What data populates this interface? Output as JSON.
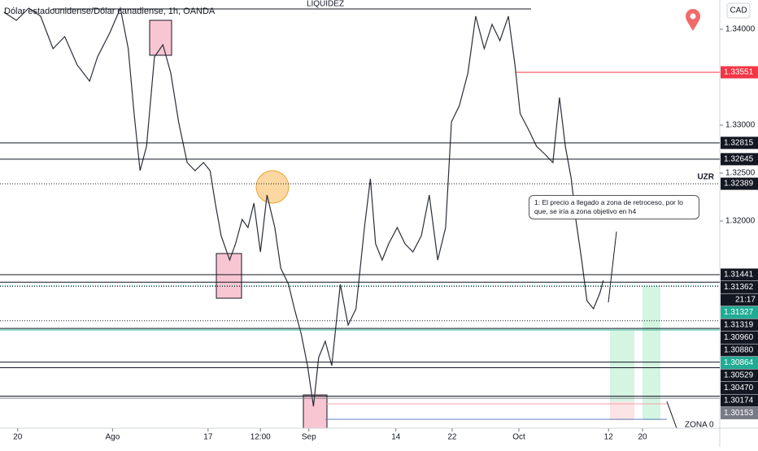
{
  "chart_data": {
    "type": "line",
    "title": "Dólar estadounidense/Dólar canadiense, 1h, OANDA",
    "currency": "CAD",
    "countdown": "21:17",
    "color": "#2a2e39",
    "x": [
      0.6,
      2.5,
      4.4,
      6.2,
      8.1,
      9.9,
      11.8,
      13.7,
      14.9,
      16.8,
      18.4,
      19.6,
      20.5,
      21.4,
      22.4,
      23.6,
      24.9,
      26.1,
      27.3,
      28.6,
      29.8,
      31.1,
      32.1,
      32.9,
      33.8,
      35.1,
      36.0,
      37.0,
      37.9,
      38.8,
      39.8,
      40.8,
      42.0,
      42.9,
      44.1,
      45.0,
      46.0,
      47.0,
      47.9,
      48.7,
      49.7,
      50.7,
      52.0,
      53.2,
      54.4,
      55.7,
      56.6,
      57.4,
      58.4,
      59.4,
      60.7,
      61.9,
      63.1,
      64.4,
      65.6,
      66.9,
      68.1,
      69.0,
      70.2,
      71.5,
      72.7,
      74.0,
      75.2,
      76.4,
      77.7,
      78.7,
      79.5,
      80.8,
      82.0,
      83.3,
      84.5,
      85.5,
      86.4,
      87.3,
      88.0,
      88.9,
      89.7,
      90.7,
      91.7,
      92.2
    ],
    "values": [
      1.34178,
      1.34093,
      1.3422,
      1.34136,
      1.33797,
      1.33924,
      1.33627,
      1.33458,
      1.33712,
      1.33966,
      1.3422,
      1.33797,
      1.33119,
      1.32525,
      1.3278,
      1.33712,
      1.33839,
      1.33542,
      1.33034,
      1.3261,
      1.32525,
      1.3261,
      1.32525,
      1.32186,
      1.31847,
      1.31593,
      1.31763,
      1.32017,
      1.31932,
      1.32186,
      1.31678,
      1.32271,
      1.31932,
      1.31508,
      1.31339,
      1.31085,
      1.30831,
      1.30492,
      1.30068,
      1.30576,
      1.30746,
      1.30492,
      1.31339,
      1.30915,
      1.31085,
      1.31932,
      1.32441,
      1.31763,
      1.31593,
      1.31763,
      1.31932,
      1.31763,
      1.31678,
      1.31847,
      1.32271,
      1.31593,
      1.31932,
      1.33034,
      1.33203,
      1.33542,
      1.34136,
      1.33797,
      1.34051,
      1.33881,
      1.34136,
      1.33627,
      1.33119,
      1.32949,
      1.3278,
      1.32695,
      1.3261,
      1.33288,
      1.3278,
      1.32441,
      1.32017,
      1.31593,
      1.31169,
      1.31085,
      1.31254,
      1.31381
    ],
    "xlim": [
      0,
      110
    ],
    "xticks": [
      {
        "value": 2.7,
        "label": "20"
      },
      {
        "value": 17.2,
        "label": "Ago"
      },
      {
        "value": 31.8,
        "label": "17"
      },
      {
        "value": 39.8,
        "label": "12:00"
      },
      {
        "value": 47.2,
        "label": "Sep"
      },
      {
        "value": 60.5,
        "label": "14"
      },
      {
        "value": 69.1,
        "label": "22"
      },
      {
        "value": 79.3,
        "label": "Oct"
      },
      {
        "value": 93,
        "label": "12"
      },
      {
        "value": 98.2,
        "label": "20"
      }
    ],
    "ylim": [
      1.29839,
      1.34305
    ],
    "yticks": [
      {
        "value": 1.34,
        "label": "1.34000"
      },
      {
        "value": 1.33,
        "label": "1.33000"
      },
      {
        "value": 1.325,
        "label": "1.32500"
      },
      {
        "value": 1.32,
        "label": "1.32000"
      }
    ],
    "levels": [
      {
        "value": 1.33551,
        "label": "1.33551",
        "color": "#f23645",
        "style": "solid"
      },
      {
        "value": 1.32815,
        "label": "1.32815",
        "color": "#131722",
        "style": "solid"
      },
      {
        "value": 1.32645,
        "label": "1.32645",
        "color": "#131722",
        "style": "solid"
      },
      {
        "value": 1.32389,
        "label": "1.32389",
        "color": "#131722",
        "style": "dotted"
      },
      {
        "value": 1.31441,
        "label": "1.31441",
        "color": "#131722",
        "style": "solid"
      },
      {
        "value": 1.31362,
        "label": "1.31362",
        "color": "#131722",
        "style": "solid"
      },
      {
        "value": 1.31327,
        "label": "1.31327",
        "color": "#22ab94",
        "style": "dotted"
      },
      {
        "value": 1.31319,
        "label": "1.31319",
        "color": "#131722",
        "style": "dotted"
      },
      {
        "value": 1.3096,
        "label": "1.30960",
        "color": "#131722",
        "style": "dotted"
      },
      {
        "value": 1.3088,
        "label": "1.30880",
        "color": "#131722",
        "style": "solid"
      },
      {
        "value": 1.30864,
        "label": "1.30864",
        "color": "#22ab94",
        "style": "solid"
      },
      {
        "value": 1.30529,
        "label": "1.30529",
        "color": "#131722",
        "style": "solid"
      },
      {
        "value": 1.3047,
        "label": "1.30470",
        "color": "#131722",
        "style": "solid"
      },
      {
        "value": 1.30174,
        "label": "1.30174",
        "color": "#131722",
        "style": "solid"
      },
      {
        "value": 1.30153,
        "label": "1.30153",
        "color": "#787b86",
        "style": "solid"
      }
    ],
    "annotations": {
      "liquidity": "LIQUIDEZ",
      "uzr": "UZR",
      "note": "1: El precio a llegado a zona de retroceso, por lo que, se iría a zona objetivo en h4",
      "zone": "ZONA 0"
    }
  }
}
